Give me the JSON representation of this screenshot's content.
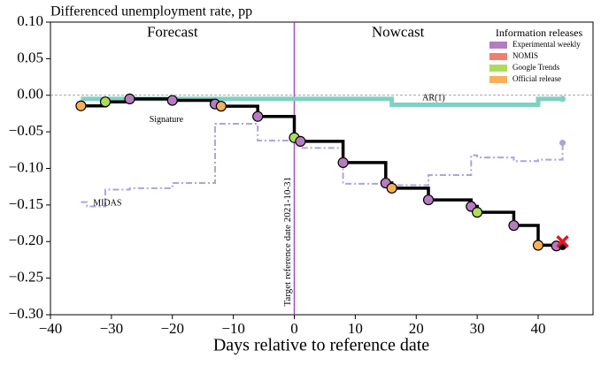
{
  "chart_data": {
    "type": "step",
    "title": "Differenced unemployment rate, pp",
    "x_label": "Days relative to reference date",
    "xlim": [
      -40,
      49
    ],
    "ylim": [
      -0.3,
      0.1
    ],
    "xticks": [
      {
        "value": -40,
        "label": "−40"
      },
      {
        "value": -30,
        "label": "−30"
      },
      {
        "value": -20,
        "label": "−20"
      },
      {
        "value": -10,
        "label": "−10"
      },
      0,
      10,
      20,
      30,
      40
    ],
    "yticks": [
      {
        "value": -0.3,
        "label": "−0.30"
      },
      {
        "value": -0.25,
        "label": "−0.25"
      },
      {
        "value": -0.2,
        "label": "−0.20"
      },
      {
        "value": -0.15,
        "label": "−0.15"
      },
      {
        "value": -0.1,
        "label": "−0.10"
      },
      {
        "value": -0.05,
        "label": "−0.05"
      },
      {
        "value": 0,
        "label": "0.00"
      },
      {
        "value": 0.05,
        "label": "0.05"
      },
      {
        "value": 0.1,
        "label": "0.10"
      }
    ],
    "reference_line": {
      "x": 0,
      "label": "Target reference date 2021-10-31",
      "color": "#a64dbf"
    },
    "zero_line": true,
    "regions": [
      "Forecast",
      "Nowcast"
    ],
    "legend": {
      "title": "Information releases",
      "corner": "upper right",
      "entries": [
        {
          "name": "Experimental weekly",
          "color": "#b57cc0"
        },
        {
          "name": "NOMIS",
          "color": "#f47e6c"
        },
        {
          "name": "Google Trends",
          "color": "#addc5c"
        },
        {
          "name": "Official release",
          "color": "#f6b05c"
        }
      ]
    },
    "series": [
      {
        "name": "MIDAS",
        "color": "#aaa5d9",
        "style": "dashdot",
        "x": [
          -35,
          -34,
          -31,
          -27,
          -20,
          -13,
          -6,
          1,
          8,
          15,
          22,
          29,
          30,
          36,
          40,
          44
        ],
        "values": [
          -0.146,
          -0.152,
          -0.129,
          -0.127,
          -0.12,
          -0.039,
          -0.062,
          -0.072,
          -0.121,
          -0.123,
          -0.109,
          -0.082,
          -0.085,
          -0.09,
          -0.088,
          -0.065
        ]
      },
      {
        "name": "AR(1)",
        "color": "#7fd1c2",
        "style": "thick",
        "x": [
          -35,
          16,
          40,
          44
        ],
        "values": [
          -0.005,
          -0.013,
          -0.005,
          -0.005
        ]
      },
      {
        "name": "Signature",
        "color": "#000000",
        "style": "solid",
        "x": [
          -35,
          -31,
          -27,
          -20,
          -13,
          -12,
          -6,
          0,
          1,
          8,
          15,
          16,
          22,
          29,
          30,
          36,
          40,
          43,
          44
        ],
        "values": [
          -0.0145,
          -0.009,
          -0.005,
          -0.007,
          -0.012,
          -0.015,
          -0.029,
          -0.058,
          -0.063,
          -0.092,
          -0.12,
          -0.127,
          -0.143,
          -0.152,
          -0.16,
          -0.178,
          -0.205,
          -0.206,
          -0.206
        ],
        "release": [
          3,
          2,
          0,
          0,
          0,
          3,
          0,
          2,
          0,
          0,
          0,
          3,
          0,
          0,
          2,
          0,
          3,
          0,
          null
        ]
      }
    ],
    "outcome": {
      "x": 44,
      "value": -0.2,
      "color": "#e8141c"
    }
  }
}
